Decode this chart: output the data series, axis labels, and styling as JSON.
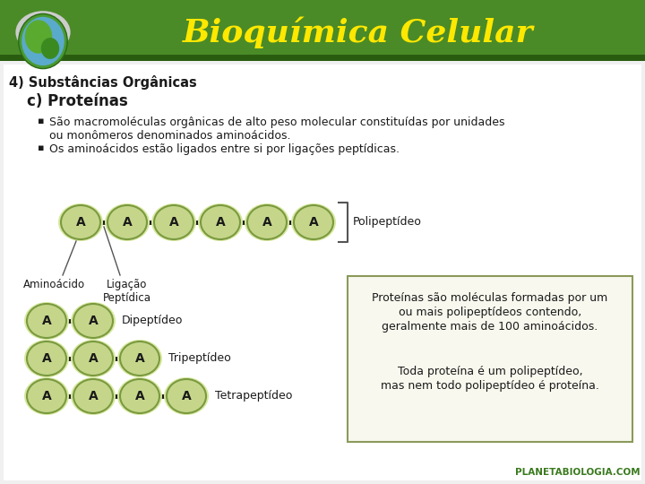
{
  "title": "Bioquímica Celular",
  "title_color": "#FFE800",
  "header_bg_color": "#4A8B28",
  "header_dark_strip": "#2A5C10",
  "bg_color": "#FFFFFF",
  "subtitle1": "4) Substâncias Orgânicas",
  "subtitle2": "c) Proteínas",
  "bullet1a": "São macromoléculas orgânicas de alto peso molecular constituídas por unidades",
  "bullet1b": "ou monômeros denominados aminoácidos.",
  "bullet2": "Os aminoácidos estão ligados entre si por ligações peptídicas.",
  "circle_color": "#C5D68A",
  "circle_edge_color": "#7A9A40",
  "circle_label": "A",
  "polipeptideo_label": "Polipeptídeo",
  "aminoacido_label": "Aminoácido",
  "ligacao_label": "Ligação\nPeptídica",
  "dipeptideo_label": "Dipeptídeo",
  "tripeptideo_label": "Tripeptídeo",
  "tetrapeptideo_label": "Tetrapeptídeo",
  "info_box_border": "#8A9A5A",
  "info_box_bg": "#F8F8EE",
  "info_line1": "Proteínas são moléculas formadas por um",
  "info_line2": "ou mais polipeptídeos contendo,",
  "info_line3": "geralmente mais de 100 aminoácidos.",
  "info_line4": "Toda proteína é um polipeptídeo,",
  "info_line5": "mas nem todo polipeptídeo é proteína.",
  "watermark": "PLANETABIOLOGIA.COM",
  "watermark_color": "#3A7A1E",
  "text_color": "#1A1A1A",
  "line_color": "#1A1A1A"
}
